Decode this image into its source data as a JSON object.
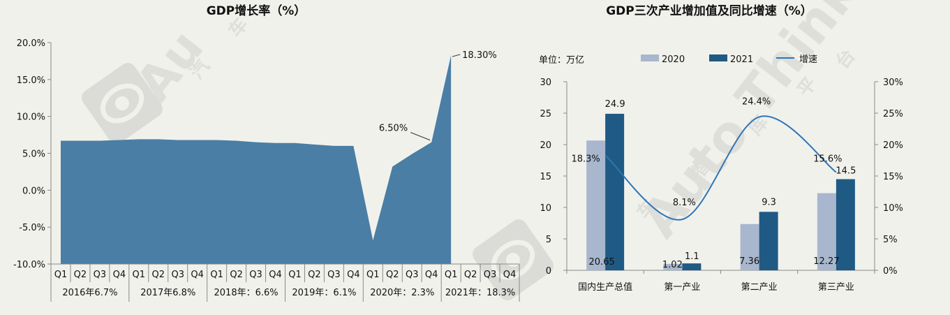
{
  "chart_data": [
    {
      "type": "area",
      "title": "GDP增长率（%）",
      "x_quarters": [
        "Q1",
        "Q2",
        "Q3",
        "Q4",
        "Q1",
        "Q2",
        "Q3",
        "Q4",
        "Q1",
        "Q2",
        "Q3",
        "Q4",
        "Q1",
        "Q2",
        "Q3",
        "Q4",
        "Q1",
        "Q2",
        "Q3",
        "Q4",
        "Q1",
        "Q2",
        "Q3",
        "Q4"
      ],
      "year_groups": [
        "2016年6.7%",
        "2017年6.8%",
        "2018年：6.6%",
        "2019年：6.1%",
        "2020年：2.3%",
        "2021年：18.3%"
      ],
      "values": [
        6.7,
        6.7,
        6.7,
        6.8,
        6.9,
        6.9,
        6.8,
        6.8,
        6.8,
        6.7,
        6.5,
        6.4,
        6.4,
        6.2,
        6.0,
        6.0,
        -6.8,
        3.2,
        4.9,
        6.5,
        18.3,
        null,
        null,
        null
      ],
      "ylim": [
        -10,
        20
      ],
      "yticks": [
        "20.0%",
        "15.0%",
        "10.0%",
        "5.0%",
        "0.0%",
        "-5.0%",
        "-10.0%"
      ],
      "annotations": [
        {
          "label": "6.50%",
          "index": 19
        },
        {
          "label": "18.30%",
          "index": 20
        }
      ],
      "color": "#4a7ea5"
    },
    {
      "type": "bar",
      "title": "GDP三次产业增加值及同比增速（%）",
      "unit_label": "单位：万亿",
      "categories": [
        "国内生产总值",
        "第一产业",
        "第二产业",
        "第三产业"
      ],
      "series": [
        {
          "name": "2020",
          "values": [
            20.65,
            1.02,
            7.36,
            12.27
          ],
          "labels": [
            "20.65",
            "1.02",
            "7.36",
            "12.27"
          ],
          "color": "#a8b7cd"
        },
        {
          "name": "2021",
          "values": [
            24.9,
            1.1,
            9.3,
            14.5
          ],
          "labels": [
            "24.9",
            "1.1",
            "9.3",
            "14.5"
          ],
          "color": "#1f5a85"
        }
      ],
      "line_series": {
        "name": "增速",
        "values": [
          18.3,
          8.1,
          24.4,
          15.6
        ],
        "labels": [
          "18.3%",
          "8.1%",
          "24.4%",
          "15.6%"
        ],
        "color": "#2e75b6"
      },
      "ylim_left": [
        0,
        30
      ],
      "yticks_left": [
        "30",
        "25",
        "20",
        "15",
        "10",
        "5",
        "0"
      ],
      "ylim_right": [
        0,
        30
      ],
      "yticks_right": [
        "30%",
        "25%",
        "20%",
        "15%",
        "10%",
        "5%",
        "0%"
      ]
    }
  ],
  "watermark": {
    "brand": "Auto Thinker",
    "chars_1": [
      "汽",
      "车"
    ],
    "chars_2": [
      "车",
      "智",
      "库",
      "平",
      "台"
    ]
  }
}
